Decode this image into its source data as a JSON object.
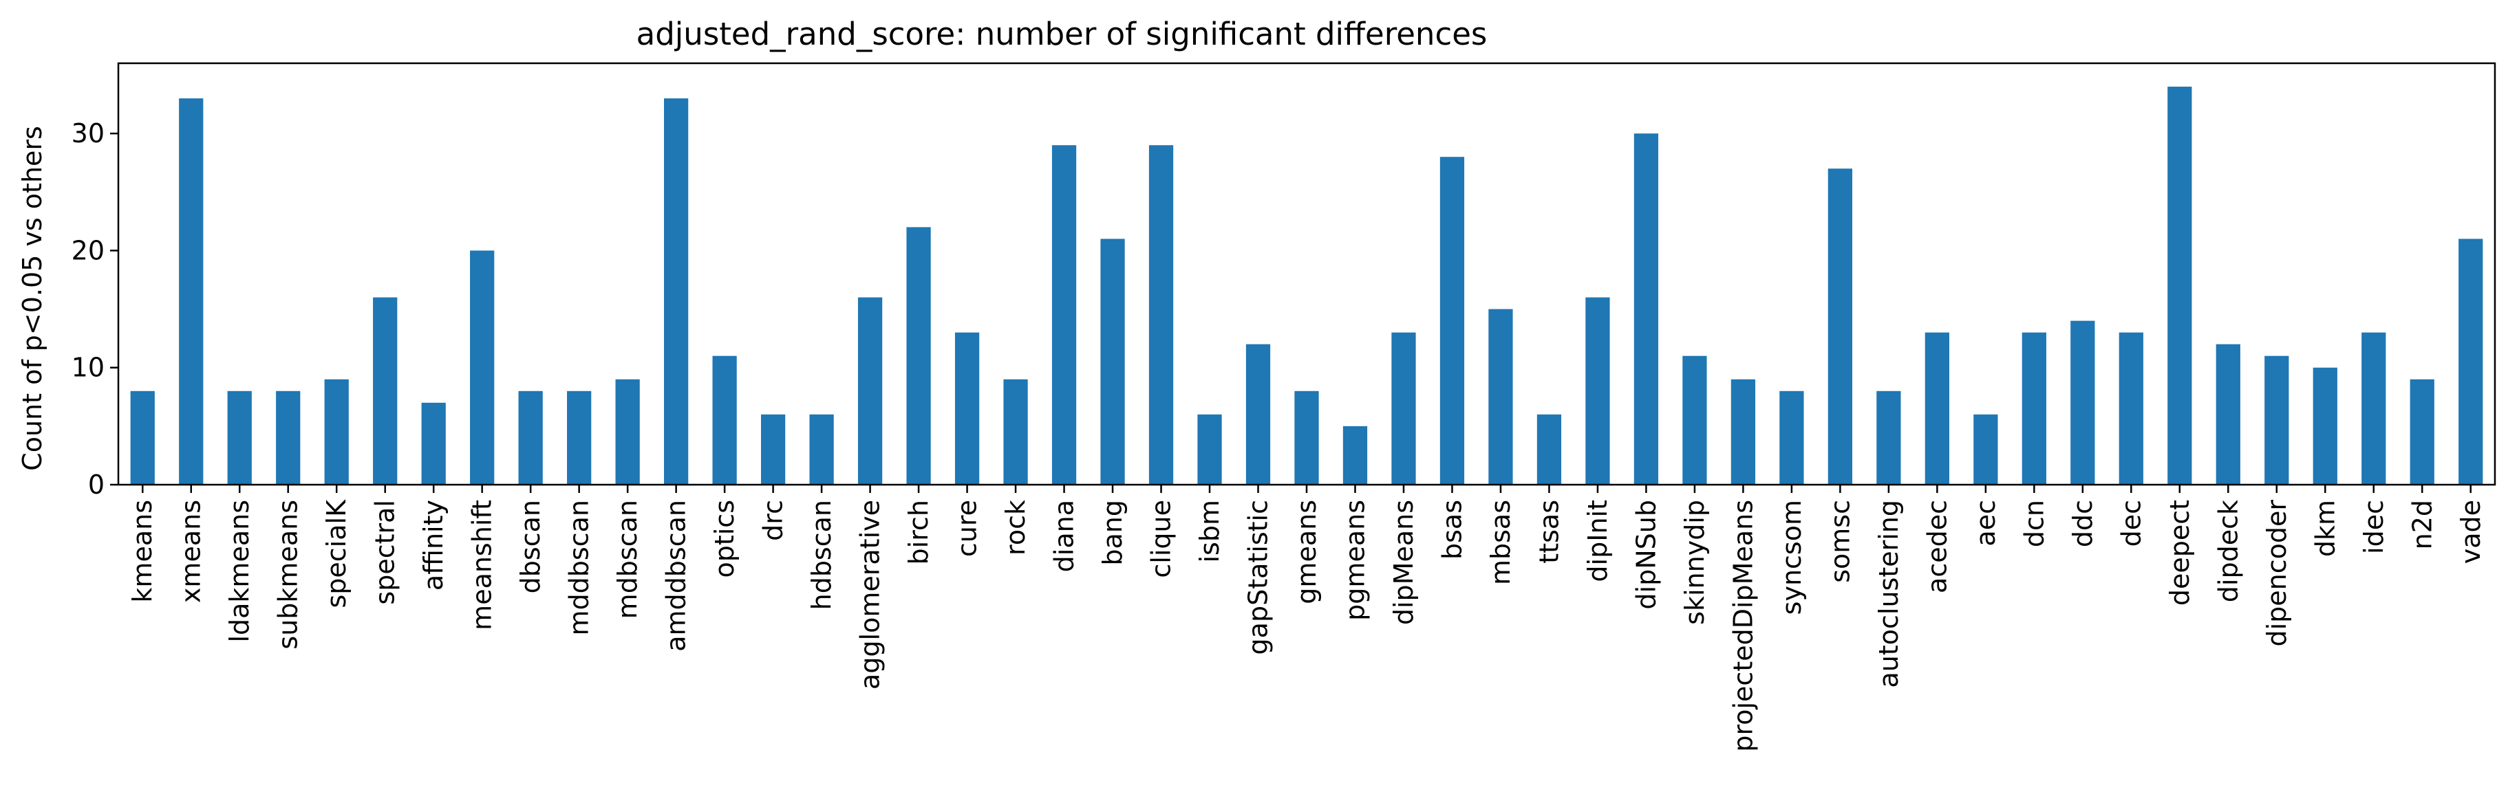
{
  "chart_data": {
    "type": "bar",
    "title": "adjusted_rand_score: number of significant differences",
    "xlabel": "",
    "ylabel": "Count of p<0.05 vs others",
    "ylim": [
      0,
      36
    ],
    "yticks": [
      0,
      10,
      20,
      30
    ],
    "grid": false,
    "legend": "none",
    "bar_color": "#1f77b4",
    "categories": [
      "kmeans",
      "xmeans",
      "ldakmeans",
      "subkmeans",
      "specialK",
      "spectral",
      "affinity",
      "meanshift",
      "dbscan",
      "mddbscan",
      "mdbscan",
      "amddbscan",
      "optics",
      "drc",
      "hdbscan",
      "agglomerative",
      "birch",
      "cure",
      "rock",
      "diana",
      "bang",
      "clique",
      "isbm",
      "gapStatistic",
      "gmeans",
      "pgmeans",
      "dipMeans",
      "bsas",
      "mbsas",
      "ttsas",
      "dipInit",
      "dipNSub",
      "skinnydip",
      "projectedDipMeans",
      "syncsom",
      "somsc",
      "autoclustering",
      "acedec",
      "aec",
      "dcn",
      "ddc",
      "dec",
      "deepect",
      "dipdeck",
      "dipencoder",
      "dkm",
      "idec",
      "n2d",
      "vade"
    ],
    "values": [
      8,
      33,
      8,
      8,
      9,
      16,
      7,
      20,
      8,
      8,
      9,
      33,
      11,
      6,
      6,
      16,
      22,
      13,
      9,
      29,
      21,
      29,
      6,
      12,
      8,
      5,
      13,
      28,
      15,
      6,
      16,
      30,
      11,
      9,
      8,
      27,
      8,
      13,
      6,
      13,
      14,
      13,
      34,
      12,
      11,
      10,
      13,
      9,
      21
    ]
  }
}
